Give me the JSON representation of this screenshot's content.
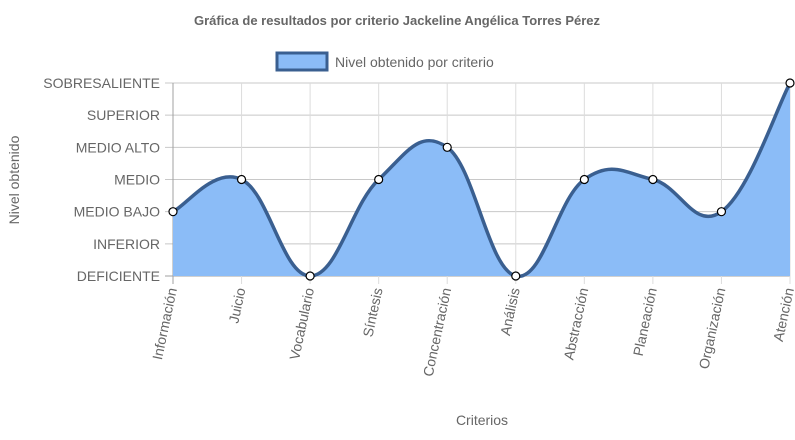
{
  "chart_data": {
    "type": "line",
    "title": "Gráfica de resultados por criterio Jackeline Angélica Torres Pérez",
    "xlabel": "Criterios",
    "ylabel": "Nivel obtenido",
    "legend_position": "top",
    "y_levels": [
      "DEFICIENTE",
      "INFERIOR",
      "MEDIO BAJO",
      "MEDIO",
      "MEDIO ALTO",
      "SUPERIOR",
      "SOBRESALIENTE"
    ],
    "categories": [
      "Información",
      "Juicio",
      "Vocabulario",
      "Síntesis",
      "Concentración",
      "Análisis",
      "Abstracción",
      "Planeación",
      "Organización",
      "Atención"
    ],
    "series": [
      {
        "name": "Nivel obtenido por criterio",
        "values": [
          "MEDIO BAJO",
          "MEDIO",
          "DEFICIENTE",
          "MEDIO",
          "MEDIO ALTO",
          "DEFICIENTE",
          "MEDIO",
          "MEDIO",
          "MEDIO BAJO",
          "SOBRESALIENTE"
        ],
        "line_color": "#3a5f90",
        "fill_color": "#8bbcf7"
      }
    ],
    "grid": true,
    "curve": "smooth"
  }
}
